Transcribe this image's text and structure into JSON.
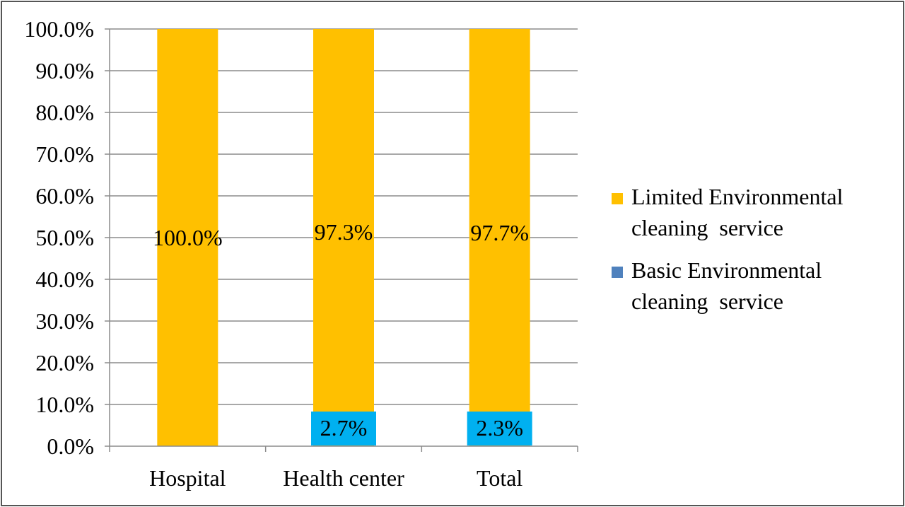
{
  "chart_data": {
    "type": "bar",
    "stacked": true,
    "categories": [
      "Hospital",
      "Health center",
      "Total"
    ],
    "series": [
      {
        "name": "Limited Environmental cleaning  service",
        "legend_lines": [
          "Limited Environmental",
          "cleaning  service"
        ],
        "values": [
          100.0,
          97.3,
          97.7
        ],
        "labels": [
          "100.0%",
          "97.3%",
          "97.7%"
        ],
        "color": "#FFC000",
        "label_box": false
      },
      {
        "name": "Basic Environmental cleaning  service",
        "legend_lines": [
          "Basic Environmental",
          "cleaning  service"
        ],
        "values": [
          0.0,
          2.7,
          2.3
        ],
        "labels": [
          "",
          "2.7%",
          "2.3%"
        ],
        "color": "#4F81BD",
        "label_box_color": "#00B0F0"
      }
    ],
    "ylim": [
      0,
      100
    ],
    "yticks": [
      "0.0%",
      "10.0%",
      "20.0%",
      "30.0%",
      "40.0%",
      "50.0%",
      "60.0%",
      "70.0%",
      "80.0%",
      "90.0%",
      "100.0%"
    ],
    "grid": true,
    "legend_position": "right",
    "title": "",
    "xlabel": "",
    "ylabel": ""
  }
}
